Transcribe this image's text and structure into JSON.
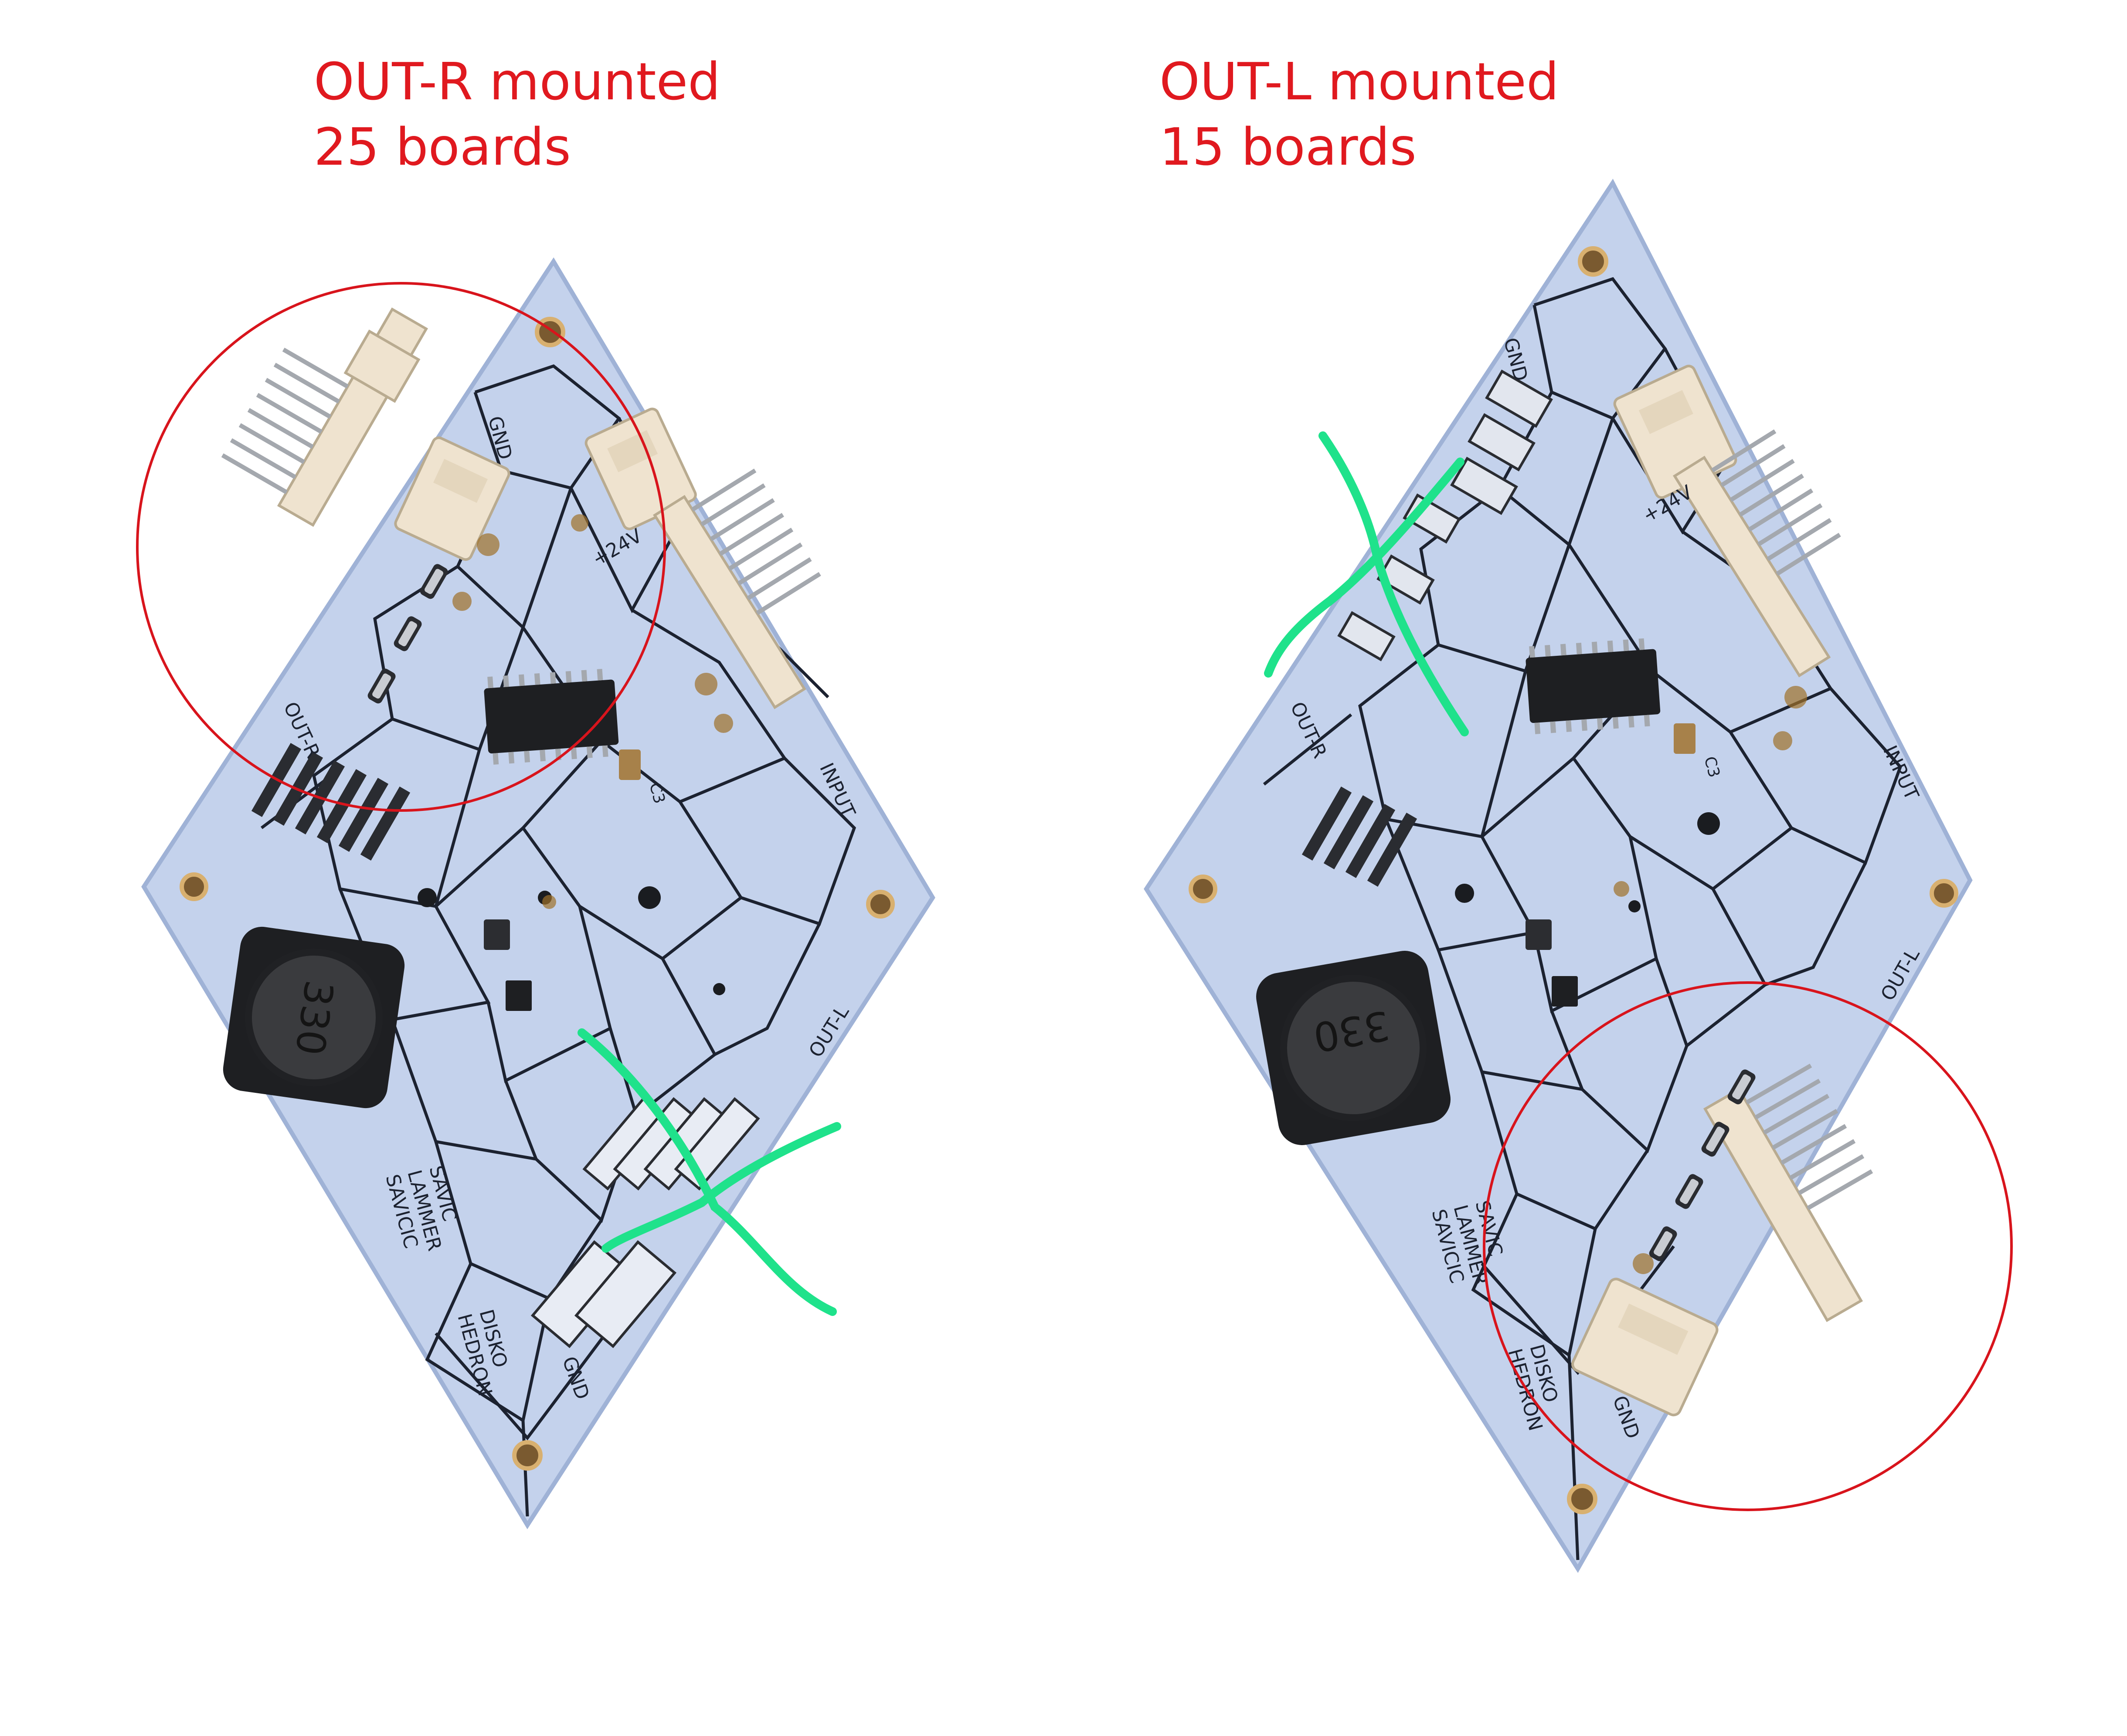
{
  "colors": {
    "caption": "#e0191f",
    "pcb": "#c4d2ec",
    "pcb_edge": "#9fb2d6",
    "trace": "#1c2230",
    "header_plastic": "#efe3cf",
    "pin_metal": "#a4a8ae",
    "ic_body": "#1e1f22",
    "inductor": "#2b2c2f",
    "solder_flux": "#a0702a",
    "circle_marker": "#d8141c",
    "cross_marker": "#1fe28b"
  },
  "left_board": {
    "caption": {
      "line1": "OUT-R mounted",
      "line2": "25 boards"
    },
    "silkscreen": {
      "gnd_top": "GND",
      "v24": "+24V",
      "out_r": "OUT-R",
      "input": "INPUT",
      "out_l": "OUT-L",
      "gnd_bottom": "GND",
      "inductor_label": "330",
      "credits": [
        "SAVIC",
        "LAMMER",
        "SAVICIC"
      ],
      "project": [
        "DISKO",
        "HEDRON"
      ],
      "cap_label": "C3"
    },
    "annotations": {
      "circled_connector": "out-r",
      "crossed_connector": "out-l"
    }
  },
  "right_board": {
    "caption": {
      "line1": "OUT-L mounted",
      "line2": "15 boards"
    },
    "silkscreen": {
      "gnd_top": "GND",
      "v24": "+24V",
      "out_r": "OUT-R",
      "input": "INPUT",
      "out_l": "OUT-L",
      "gnd_bottom": "GND",
      "inductor_label": "330",
      "credits": [
        "SAVIC",
        "LAMMER",
        "SAVICIC"
      ],
      "project": [
        "DISKO",
        "HEDRON"
      ],
      "cap_label": "C3"
    },
    "annotations": {
      "circled_connector": "out-l",
      "crossed_connector": "out-r"
    }
  }
}
